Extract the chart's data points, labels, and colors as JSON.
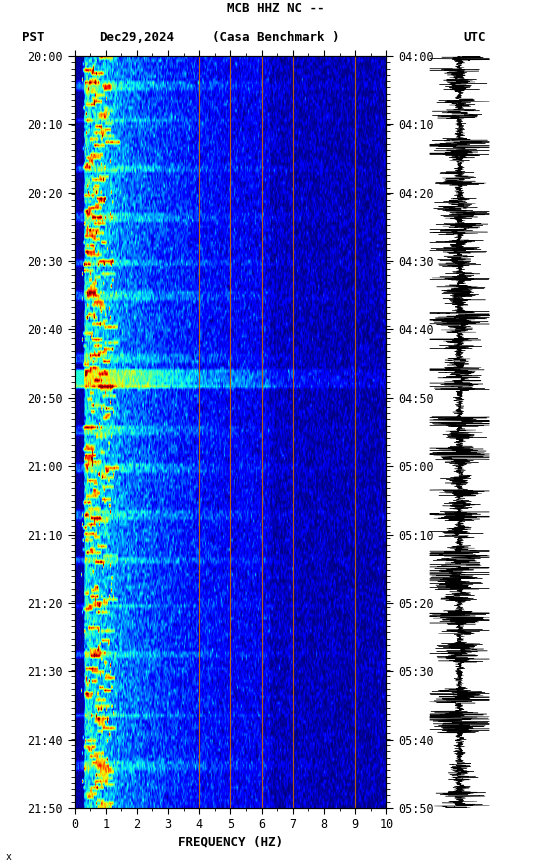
{
  "title_line1": "MCB HHZ NC --",
  "title_line2": "(Casa Benchmark )",
  "date_label": "Dec29,2024",
  "left_timezone": "PST",
  "right_timezone": "UTC",
  "left_times": [
    "20:00",
    "20:10",
    "20:20",
    "20:30",
    "20:40",
    "20:50",
    "21:00",
    "21:10",
    "21:20",
    "21:30",
    "21:40",
    "21:50"
  ],
  "right_times": [
    "04:00",
    "04:10",
    "04:20",
    "04:30",
    "04:40",
    "04:50",
    "05:00",
    "05:10",
    "05:20",
    "05:30",
    "05:40",
    "05:50"
  ],
  "freq_min": 0,
  "freq_max": 10,
  "freq_label": "FREQUENCY (HZ)",
  "freq_ticks": [
    0,
    1,
    2,
    3,
    4,
    5,
    6,
    7,
    8,
    9,
    10
  ],
  "orange_freqs": [
    4.0,
    5.0,
    6.0,
    7.0,
    9.0
  ],
  "time_steps": 240,
  "freq_steps": 400,
  "background_color": "#ffffff",
  "colormap": "jet",
  "seed": 42
}
